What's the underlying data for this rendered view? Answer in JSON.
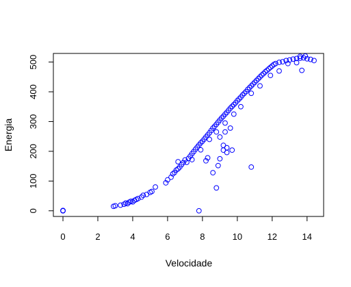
{
  "chart_data": {
    "type": "scatter",
    "title": "",
    "xlabel": "Velocidade",
    "ylabel": "Energia",
    "xlim": [
      -0.55,
      14.95
    ],
    "ylim": [
      -19,
      529
    ],
    "x_ticks": [
      0,
      2,
      4,
      6,
      8,
      10,
      12,
      14
    ],
    "y_ticks": [
      0,
      100,
      200,
      300,
      400,
      500
    ],
    "grid": false,
    "legend": "none",
    "marker": "open-circle",
    "color": "#0000ff",
    "series": [
      {
        "points": [
          [
            0.0,
            0
          ],
          [
            0.0,
            1
          ],
          [
            0.0,
            0
          ],
          [
            2.9,
            15
          ],
          [
            3.0,
            17
          ],
          [
            3.3,
            19
          ],
          [
            3.5,
            22
          ],
          [
            3.6,
            26
          ],
          [
            3.7,
            24
          ],
          [
            3.8,
            29
          ],
          [
            3.9,
            32
          ],
          [
            4.0,
            30
          ],
          [
            4.1,
            35
          ],
          [
            4.2,
            38
          ],
          [
            4.3,
            41
          ],
          [
            4.5,
            46
          ],
          [
            4.6,
            52
          ],
          [
            4.8,
            55
          ],
          [
            5.0,
            62
          ],
          [
            5.1,
            65
          ],
          [
            5.3,
            80
          ],
          [
            5.9,
            94
          ],
          [
            6.0,
            104
          ],
          [
            6.2,
            113
          ],
          [
            6.3,
            124
          ],
          [
            6.4,
            129
          ],
          [
            6.5,
            137
          ],
          [
            6.6,
            141
          ],
          [
            6.6,
            165
          ],
          [
            6.7,
            147
          ],
          [
            6.8,
            155
          ],
          [
            6.9,
            162
          ],
          [
            7.0,
            171
          ],
          [
            7.1,
            163
          ],
          [
            7.2,
            176
          ],
          [
            7.3,
            184
          ],
          [
            7.4,
            192
          ],
          [
            7.5,
            199
          ],
          [
            7.6,
            207
          ],
          [
            7.7,
            214
          ],
          [
            7.8,
            221
          ],
          [
            7.9,
            228
          ],
          [
            8.0,
            234
          ],
          [
            8.1,
            241
          ],
          [
            8.2,
            248
          ],
          [
            8.3,
            255
          ],
          [
            8.4,
            262
          ],
          [
            8.5,
            270
          ],
          [
            8.6,
            278
          ],
          [
            8.7,
            284
          ],
          [
            8.8,
            291
          ],
          [
            8.9,
            298
          ],
          [
            9.0,
            305
          ],
          [
            9.1,
            312
          ],
          [
            9.2,
            318
          ],
          [
            9.3,
            325
          ],
          [
            9.4,
            331
          ],
          [
            9.5,
            338
          ],
          [
            9.6,
            345
          ],
          [
            9.7,
            351
          ],
          [
            9.8,
            357
          ],
          [
            9.9,
            363
          ],
          [
            10.0,
            370
          ],
          [
            10.1,
            376
          ],
          [
            10.2,
            382
          ],
          [
            10.3,
            389
          ],
          [
            10.4,
            395
          ],
          [
            10.5,
            401
          ],
          [
            10.6,
            408
          ],
          [
            10.7,
            414
          ],
          [
            10.8,
            420
          ],
          [
            10.9,
            426
          ],
          [
            11.0,
            432
          ],
          [
            11.1,
            438
          ],
          [
            11.2,
            444
          ],
          [
            11.3,
            450
          ],
          [
            11.4,
            456
          ],
          [
            11.5,
            461
          ],
          [
            11.6,
            467
          ],
          [
            11.7,
            472
          ],
          [
            11.8,
            477
          ],
          [
            11.9,
            482
          ],
          [
            12.0,
            487
          ],
          [
            12.1,
            492
          ],
          [
            12.2,
            495
          ],
          [
            12.4,
            499
          ],
          [
            12.6,
            501
          ],
          [
            12.8,
            505
          ],
          [
            13.0,
            507
          ],
          [
            13.2,
            510
          ],
          [
            13.4,
            512
          ],
          [
            13.6,
            513
          ],
          [
            13.8,
            514
          ],
          [
            14.0,
            511
          ],
          [
            14.2,
            509
          ],
          [
            14.4,
            505
          ],
          [
            13.9,
            520
          ],
          [
            13.6,
            519
          ],
          [
            13.4,
            498
          ],
          [
            13.7,
            472
          ],
          [
            12.9,
            495
          ],
          [
            12.4,
            470
          ],
          [
            11.9,
            455
          ],
          [
            11.3,
            420
          ],
          [
            10.8,
            395
          ],
          [
            10.2,
            350
          ],
          [
            9.8,
            325
          ],
          [
            9.3,
            295
          ],
          [
            8.8,
            265
          ],
          [
            8.4,
            240
          ],
          [
            7.9,
            205
          ],
          [
            7.4,
            172
          ],
          [
            7.8,
            0
          ],
          [
            8.6,
            128
          ],
          [
            8.8,
            77
          ],
          [
            10.8,
            147
          ],
          [
            8.9,
            152
          ],
          [
            9.0,
            175
          ],
          [
            9.2,
            204
          ],
          [
            9.4,
            196
          ],
          [
            9.7,
            204
          ],
          [
            9.2,
            220
          ],
          [
            9.4,
            212
          ],
          [
            8.2,
            168
          ],
          [
            8.3,
            178
          ],
          [
            9.0,
            248
          ],
          [
            9.3,
            265
          ],
          [
            9.6,
            278
          ]
        ]
      }
    ]
  }
}
